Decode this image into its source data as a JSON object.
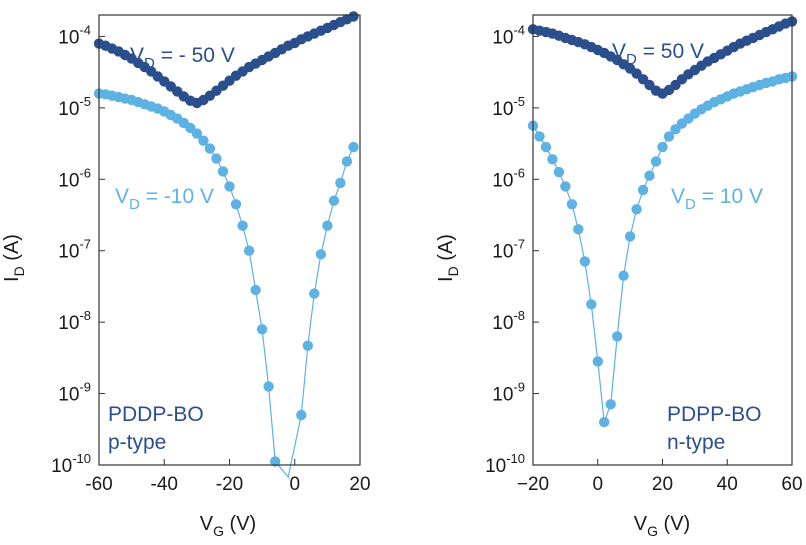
{
  "chart_data": [
    {
      "type": "scatter",
      "yscale": "log",
      "xlim": [
        -60,
        20
      ],
      "ylim_exp": [
        -10,
        -3.7
      ],
      "xticks": [
        "-60",
        "-40",
        "-20",
        "0",
        "20"
      ],
      "xtick_values": [
        -60,
        -40,
        -20,
        0,
        20
      ],
      "yticks": [
        {
          "base": "10",
          "exp": "-10",
          "value": -10
        },
        {
          "base": "10",
          "exp": "-9",
          "value": -9
        },
        {
          "base": "10",
          "exp": "-8",
          "value": -8
        },
        {
          "base": "10",
          "exp": "-7",
          "value": -7
        },
        {
          "base": "10",
          "exp": "-6",
          "value": -6
        },
        {
          "base": "10",
          "exp": "-5",
          "value": -5
        },
        {
          "base": "10",
          "exp": "-4",
          "value": -4
        }
      ],
      "xlabel": {
        "main": "V",
        "sub": "G",
        "rest": " (V)"
      },
      "ylabel": {
        "main": "I",
        "sub": "D",
        "rest": " (A)"
      },
      "material": "PDDP-BO",
      "polarity": "p-type",
      "series": [
        {
          "name": "VD = -50 V",
          "label": {
            "main": "V",
            "sub": "D",
            "rest": " = - 50 V"
          },
          "color": "#2b4f8c",
          "x": [
            -60,
            -58,
            -56,
            -54,
            -52,
            -50,
            -48,
            -46,
            -44,
            -42,
            -40,
            -38,
            -36,
            -34,
            -32,
            -30,
            -28,
            -26,
            -24,
            -22,
            -20,
            -18,
            -16,
            -14,
            -12,
            -10,
            -8,
            -6,
            -4,
            -2,
            0,
            2,
            4,
            6,
            8,
            10,
            12,
            14,
            16,
            18
          ],
          "log_y": [
            -4.1,
            -4.13,
            -4.17,
            -4.21,
            -4.26,
            -4.31,
            -4.37,
            -4.43,
            -4.49,
            -4.56,
            -4.63,
            -4.7,
            -4.77,
            -4.84,
            -4.9,
            -4.93,
            -4.89,
            -4.83,
            -4.76,
            -4.69,
            -4.62,
            -4.55,
            -4.49,
            -4.43,
            -4.38,
            -4.33,
            -4.28,
            -4.23,
            -4.18,
            -4.13,
            -4.09,
            -4.04,
            -4.0,
            -3.96,
            -3.92,
            -3.88,
            -3.84,
            -3.8,
            -3.76,
            -3.72
          ]
        },
        {
          "name": "VD = -10 V",
          "label": {
            "main": "V",
            "sub": "D",
            "rest": " = -10 V"
          },
          "color": "#5eb2e3",
          "x": [
            -60,
            -58,
            -56,
            -54,
            -52,
            -50,
            -48,
            -46,
            -44,
            -42,
            -40,
            -38,
            -36,
            -34,
            -32,
            -30,
            -28,
            -26,
            -24,
            -22,
            -20,
            -18,
            -16,
            -14,
            -12,
            -10,
            -8,
            -6,
            2,
            4,
            6,
            8,
            10,
            12,
            14,
            16,
            18
          ],
          "log_y": [
            -4.8,
            -4.81,
            -4.83,
            -4.85,
            -4.87,
            -4.89,
            -4.92,
            -4.95,
            -4.98,
            -5.01,
            -5.05,
            -5.1,
            -5.15,
            -5.21,
            -5.28,
            -5.36,
            -5.46,
            -5.57,
            -5.71,
            -5.89,
            -6.1,
            -6.35,
            -6.65,
            -7.0,
            -7.55,
            -8.1,
            -8.9,
            -9.95,
            -9.3,
            -8.33,
            -7.6,
            -7.05,
            -6.65,
            -6.3,
            -6.05,
            -5.75,
            -5.55
          ]
        }
      ]
    },
    {
      "type": "scatter",
      "yscale": "log",
      "xlim": [
        -20,
        60
      ],
      "ylim_exp": [
        -10,
        -3.7
      ],
      "xticks": [
        "−20",
        "0",
        "20",
        "40",
        "60"
      ],
      "xtick_values": [
        -20,
        0,
        20,
        40,
        60
      ],
      "yticks": [
        {
          "base": "10",
          "exp": "-10",
          "value": -10
        },
        {
          "base": "10",
          "exp": "-9",
          "value": -9
        },
        {
          "base": "10",
          "exp": "-8",
          "value": -8
        },
        {
          "base": "10",
          "exp": "-7",
          "value": -7
        },
        {
          "base": "10",
          "exp": "-6",
          "value": -6
        },
        {
          "base": "10",
          "exp": "-5",
          "value": -5
        },
        {
          "base": "10",
          "exp": "-4",
          "value": -4
        }
      ],
      "xlabel": {
        "main": "V",
        "sub": "G",
        "rest": " (V)"
      },
      "ylabel": {
        "main": "I",
        "sub": "D",
        "rest": " (A)"
      },
      "material": "PDPP-BO",
      "polarity": "n-type",
      "series": [
        {
          "name": "VD = 50 V",
          "label": {
            "main": "V",
            "sub": "D",
            "rest": " = 50 V"
          },
          "color": "#2b4f8c",
          "x": [
            -20,
            -18,
            -16,
            -14,
            -12,
            -10,
            -8,
            -6,
            -4,
            -2,
            0,
            2,
            4,
            6,
            8,
            10,
            12,
            14,
            16,
            18,
            20,
            22,
            24,
            26,
            28,
            30,
            32,
            34,
            36,
            38,
            40,
            42,
            44,
            46,
            48,
            50,
            52,
            54,
            56,
            58,
            60
          ],
          "log_y": [
            -3.9,
            -3.92,
            -3.94,
            -3.96,
            -3.99,
            -4.02,
            -4.05,
            -4.08,
            -4.11,
            -4.15,
            -4.19,
            -4.23,
            -4.28,
            -4.33,
            -4.39,
            -4.45,
            -4.52,
            -4.6,
            -4.68,
            -4.76,
            -4.8,
            -4.75,
            -4.68,
            -4.6,
            -4.53,
            -4.47,
            -4.41,
            -4.35,
            -4.3,
            -4.25,
            -4.2,
            -4.15,
            -4.1,
            -4.06,
            -4.02,
            -3.98,
            -3.94,
            -3.9,
            -3.86,
            -3.82,
            -3.79
          ]
        },
        {
          "name": "VD = 10 V",
          "label": {
            "main": "V",
            "sub": "D",
            "rest": " = 10 V"
          },
          "color": "#5eb2e3",
          "x": [
            -20,
            -18,
            -16,
            -14,
            -12,
            -10,
            -8,
            -6,
            -4,
            -2,
            0,
            2,
            4,
            6,
            8,
            10,
            12,
            14,
            16,
            18,
            20,
            22,
            24,
            26,
            28,
            30,
            32,
            34,
            36,
            38,
            40,
            42,
            44,
            46,
            48,
            50,
            52,
            54,
            56,
            58,
            60
          ],
          "log_y": [
            -5.25,
            -5.4,
            -5.55,
            -5.72,
            -5.9,
            -6.1,
            -6.35,
            -6.7,
            -7.15,
            -7.75,
            -8.55,
            -9.4,
            -9.15,
            -8.2,
            -7.35,
            -6.8,
            -6.42,
            -6.15,
            -5.95,
            -5.75,
            -5.55,
            -5.4,
            -5.3,
            -5.22,
            -5.15,
            -5.08,
            -5.02,
            -4.97,
            -4.92,
            -4.88,
            -4.84,
            -4.8,
            -4.77,
            -4.74,
            -4.71,
            -4.68,
            -4.65,
            -4.63,
            -4.6,
            -4.58,
            -4.56
          ]
        }
      ]
    }
  ]
}
